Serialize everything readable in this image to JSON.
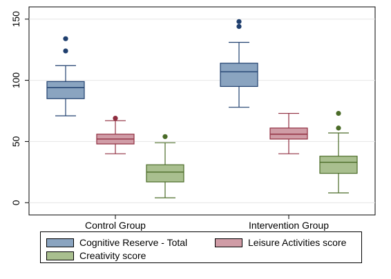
{
  "chart_data": {
    "type": "box",
    "title": "",
    "xlabel": "",
    "ylabel": "",
    "ylim": [
      -10,
      160
    ],
    "yticks": [
      0,
      50,
      100,
      150
    ],
    "grid": true,
    "legend_position": "bottom",
    "categories": [
      "Control Group",
      "Intervention Group"
    ],
    "series": [
      {
        "name": "Cognitive Reserve - Total",
        "color": "#8AA4C0",
        "outlier_color": "#1F3F6E",
        "boxes": [
          {
            "whisker_low": 71,
            "q1": 85,
            "median": 94,
            "q3": 99,
            "whisker_high": 112,
            "outliers": [
              124,
              134
            ]
          },
          {
            "whisker_low": 78,
            "q1": 95,
            "median": 107,
            "q3": 114,
            "whisker_high": 131,
            "outliers": [
              144,
              148
            ]
          }
        ]
      },
      {
        "name": "Leisure Activities score",
        "color": "#D09CA6",
        "outlier_color": "#8F2D3F",
        "boxes": [
          {
            "whisker_low": 40,
            "q1": 48,
            "median": 52,
            "q3": 56,
            "whisker_high": 67,
            "outliers": [
              69
            ]
          },
          {
            "whisker_low": 40,
            "q1": 52,
            "median": 56,
            "q3": 61,
            "whisker_high": 73,
            "outliers": []
          }
        ]
      },
      {
        "name": "Creativity score",
        "color": "#A9BF8F",
        "outlier_color": "#4A6B27",
        "boxes": [
          {
            "whisker_low": 4,
            "q1": 17,
            "median": 25,
            "q3": 31,
            "whisker_high": 49,
            "outliers": [
              54
            ]
          },
          {
            "whisker_low": 8,
            "q1": 24,
            "median": 33,
            "q3": 38,
            "whisker_high": 57,
            "outliers": [
              61,
              73
            ]
          }
        ]
      }
    ]
  }
}
